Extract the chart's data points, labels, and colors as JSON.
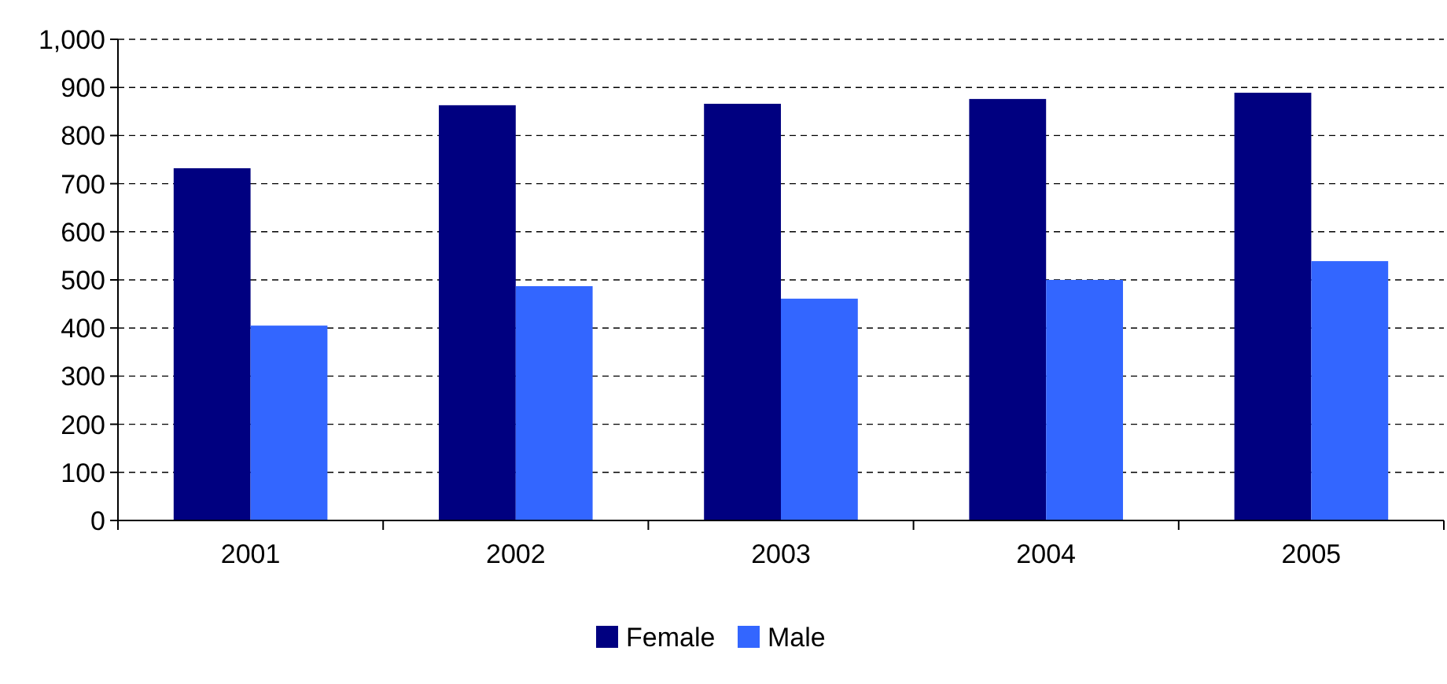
{
  "chart_data": {
    "type": "bar",
    "categories": [
      "2001",
      "2002",
      "2003",
      "2004",
      "2005"
    ],
    "series": [
      {
        "name": "Female",
        "color": "#000080",
        "values": [
          732,
          863,
          866,
          876,
          889
        ]
      },
      {
        "name": "Male",
        "color": "#3366ff",
        "values": [
          405,
          487,
          461,
          500,
          539
        ]
      }
    ],
    "ylim": [
      0,
      1000
    ],
    "yticks": [
      0,
      100,
      200,
      300,
      400,
      500,
      600,
      700,
      800,
      {
        "value": 900,
        "label": "900"
      },
      {
        "value": 1000,
        "label": "1,000"
      }
    ],
    "grid": "y",
    "legend": "bottom"
  }
}
